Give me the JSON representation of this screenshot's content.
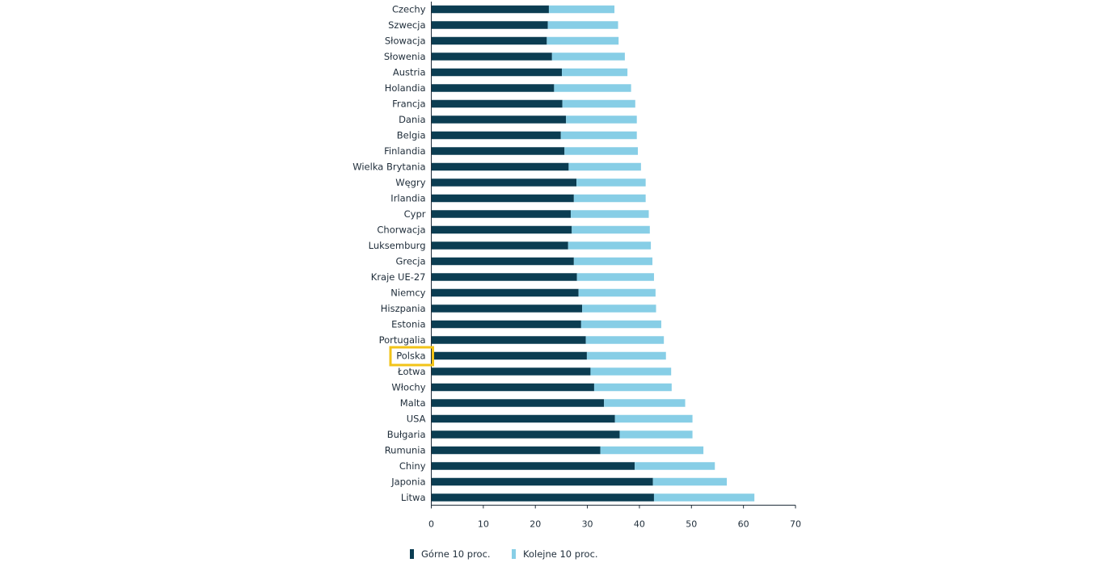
{
  "chart_data": {
    "type": "bar",
    "orientation": "horizontal",
    "stacked": true,
    "categories": [
      "Czechy",
      "Szwecja",
      "Słowacja",
      "Słowenia",
      "Austria",
      "Holandia",
      "Francja",
      "Dania",
      "Belgia",
      "Finlandia",
      "Wielka Brytania",
      "Węgry",
      "Irlandia",
      "Cypr",
      "Chorwacja",
      "Luksemburg",
      "Grecja",
      "Kraje UE-27",
      "Niemcy",
      "Hiszpania",
      "Estonia",
      "Portugalia",
      "Polska",
      "Łotwa",
      "Włochy",
      "Malta",
      "USA",
      "Bułgaria",
      "Rumunia",
      "Chiny",
      "Japonia",
      "Litwa"
    ],
    "series": [
      {
        "name": "Górne 10 proc.",
        "color": "#0b3d52",
        "values": [
          22.6,
          22.4,
          22.2,
          23.2,
          25.1,
          23.6,
          25.2,
          25.9,
          24.9,
          25.6,
          26.4,
          27.9,
          27.4,
          26.8,
          27.0,
          26.3,
          27.4,
          28.0,
          28.3,
          29.0,
          28.8,
          29.7,
          29.9,
          30.6,
          31.3,
          33.2,
          35.3,
          36.2,
          32.5,
          39.1,
          42.6,
          42.8
        ]
      },
      {
        "name": "Kolejne 10 proc.",
        "color": "#87cee6",
        "values": [
          12.6,
          13.5,
          13.8,
          14.0,
          12.6,
          14.8,
          14.0,
          13.6,
          14.6,
          14.1,
          13.9,
          13.3,
          13.8,
          15.0,
          15.0,
          15.9,
          15.1,
          14.8,
          14.8,
          14.2,
          15.4,
          15.0,
          15.2,
          15.5,
          14.9,
          15.6,
          14.9,
          14.0,
          19.8,
          15.4,
          14.2,
          19.3
        ]
      }
    ],
    "xlim": [
      0,
      70
    ],
    "xticks": [
      0,
      10,
      20,
      30,
      40,
      50,
      60,
      70
    ],
    "xlabel": "",
    "ylabel": "",
    "title": "",
    "highlight": "Polska",
    "highlight_color": "#f2c318",
    "grid": false,
    "legend_position": "bottom"
  }
}
